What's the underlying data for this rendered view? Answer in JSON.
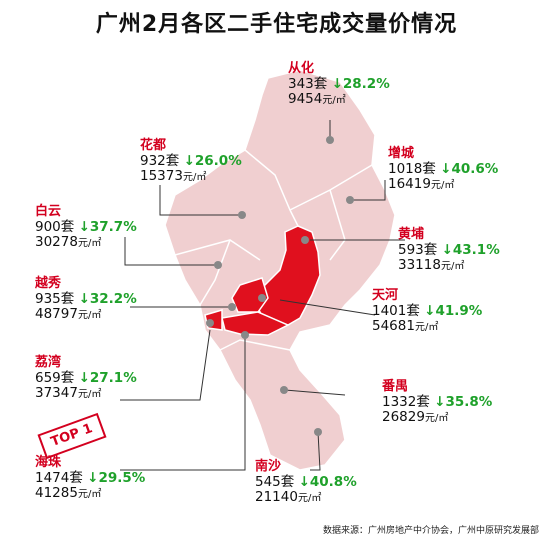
{
  "title": "广州2月各区二手住宅成交量价情况",
  "unit": "元/㎡",
  "footer": "数据来源：广州房地产中介协会，广州中原研究发展部",
  "badge": "TOP 1",
  "colors": {
    "accent": "#d3001f",
    "down": "#1fa12b",
    "map_fill": "#f0cfd0",
    "highlight": "#e0101e"
  },
  "districts": [
    {
      "name": "从化",
      "volume": "343套",
      "change": "↓28.2%",
      "price": "9454"
    },
    {
      "name": "花都",
      "volume": "932套",
      "change": "↓26.0%",
      "price": "15373"
    },
    {
      "name": "增城",
      "volume": "1018套",
      "change": "↓40.6%",
      "price": "16419"
    },
    {
      "name": "白云",
      "volume": "900套",
      "change": "↓37.7%",
      "price": "30278"
    },
    {
      "name": "黄埔",
      "volume": "593套",
      "change": "↓43.1%",
      "price": "33118"
    },
    {
      "name": "越秀",
      "volume": "935套",
      "change": "↓32.2%",
      "price": "48797"
    },
    {
      "name": "天河",
      "volume": "1401套",
      "change": "↓41.9%",
      "price": "54681"
    },
    {
      "name": "荔湾",
      "volume": "659套",
      "change": "↓27.1%",
      "price": "37347"
    },
    {
      "name": "番禺",
      "volume": "1332套",
      "change": "↓35.8%",
      "price": "26829"
    },
    {
      "name": "海珠",
      "volume": "1474套",
      "change": "↓29.5%",
      "price": "41285"
    },
    {
      "name": "南沙",
      "volume": "545套",
      "change": "↓40.8%",
      "price": "21140"
    }
  ]
}
